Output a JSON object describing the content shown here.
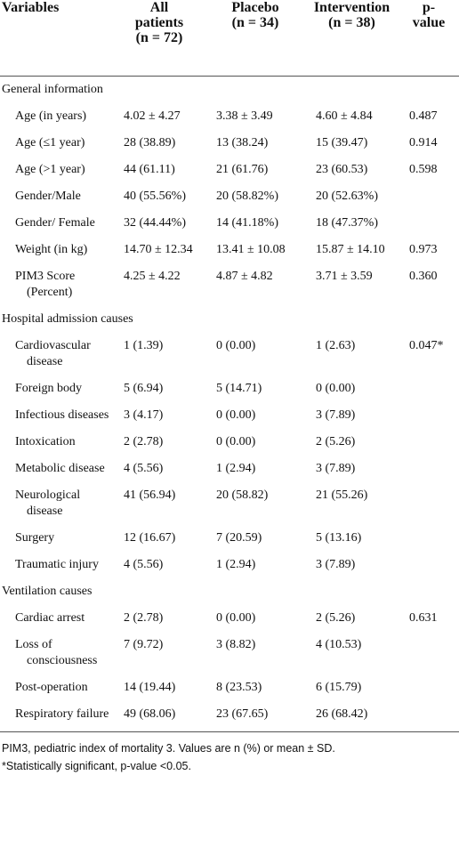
{
  "table": {
    "header": [
      [
        "Variables"
      ],
      [
        "All",
        "patients",
        "(n = 72)"
      ],
      [
        "Placebo",
        "(n = 34)"
      ],
      [
        "Intervention",
        "(n = 38)"
      ],
      [
        "p-",
        "value"
      ]
    ],
    "sections": [
      {
        "title": "General information",
        "rows": [
          [
            "Age (in years)",
            "4.02 ± 4.27",
            "3.38 ± 3.49",
            "4.60 ± 4.84",
            "0.487"
          ],
          [
            "Age (≤1 year)",
            "28 (38.89)",
            "13 (38.24)",
            "15 (39.47)",
            "0.914"
          ],
          [
            "Age (>1 year)",
            "44 (61.11)",
            "21 (61.76)",
            "23 (60.53)",
            "0.598"
          ],
          [
            "Gender/Male",
            "40 (55.56%)",
            "20 (58.82%)",
            "20 (52.63%)",
            null
          ],
          [
            "Gender/ Female",
            "32 (44.44%)",
            "14 (41.18%)",
            "18 (47.37%)",
            null
          ],
          [
            "Weight (in kg)",
            "14.70 ± 12.34",
            "13.41 ± 10.08",
            "15.87 ± 14.10",
            "0.973"
          ],
          [
            "PIM3 Score (Percent)",
            "4.25 ± 4.22",
            "4.87 ± 4.82",
            "3.71 ± 3.59",
            "0.360"
          ]
        ]
      },
      {
        "title": "Hospital admission causes",
        "rows": [
          [
            "Cardiovascular disease",
            "1 (1.39)",
            "0 (0.00)",
            "1 (2.63)",
            "0.047*"
          ],
          [
            "Foreign body",
            "5 (6.94)",
            "5 (14.71)",
            "0 (0.00)",
            null
          ],
          [
            "Infectious diseases",
            "3 (4.17)",
            "0 (0.00)",
            "3 (7.89)",
            null
          ],
          [
            "Intoxication",
            "2 (2.78)",
            "0 (0.00)",
            "2 (5.26)",
            null
          ],
          [
            "Metabolic disease",
            "4 (5.56)",
            "1 (2.94)",
            "3 (7.89)",
            null
          ],
          [
            "Neurological disease",
            "41 (56.94)",
            "20 (58.82)",
            "21 (55.26)",
            null
          ],
          [
            "Surgery",
            "12 (16.67)",
            "7 (20.59)",
            "5 (13.16)",
            null
          ],
          [
            "Traumatic injury",
            "4 (5.56)",
            "1 (2.94)",
            "3 (7.89)",
            null
          ]
        ]
      },
      {
        "title": "Ventilation causes",
        "rows": [
          [
            "Cardiac arrest",
            "2 (2.78)",
            "0 (0.00)",
            "2 (5.26)",
            "0.631"
          ],
          [
            "Loss of consciousness",
            "7 (9.72)",
            "3 (8.82)",
            "4 (10.53)",
            null
          ],
          [
            "Post-operation",
            "14 (19.44)",
            "8 (23.53)",
            "6 (15.79)",
            null
          ],
          [
            "Respiratory failure",
            "49 (68.06)",
            "23 (67.65)",
            "26 (68.42)",
            null
          ]
        ]
      }
    ],
    "footnotes": [
      "PIM3, pediatric index of mortality 3. Values are n (%) or mean ± SD.",
      "*Statistically significant, p-value <0.05."
    ]
  }
}
